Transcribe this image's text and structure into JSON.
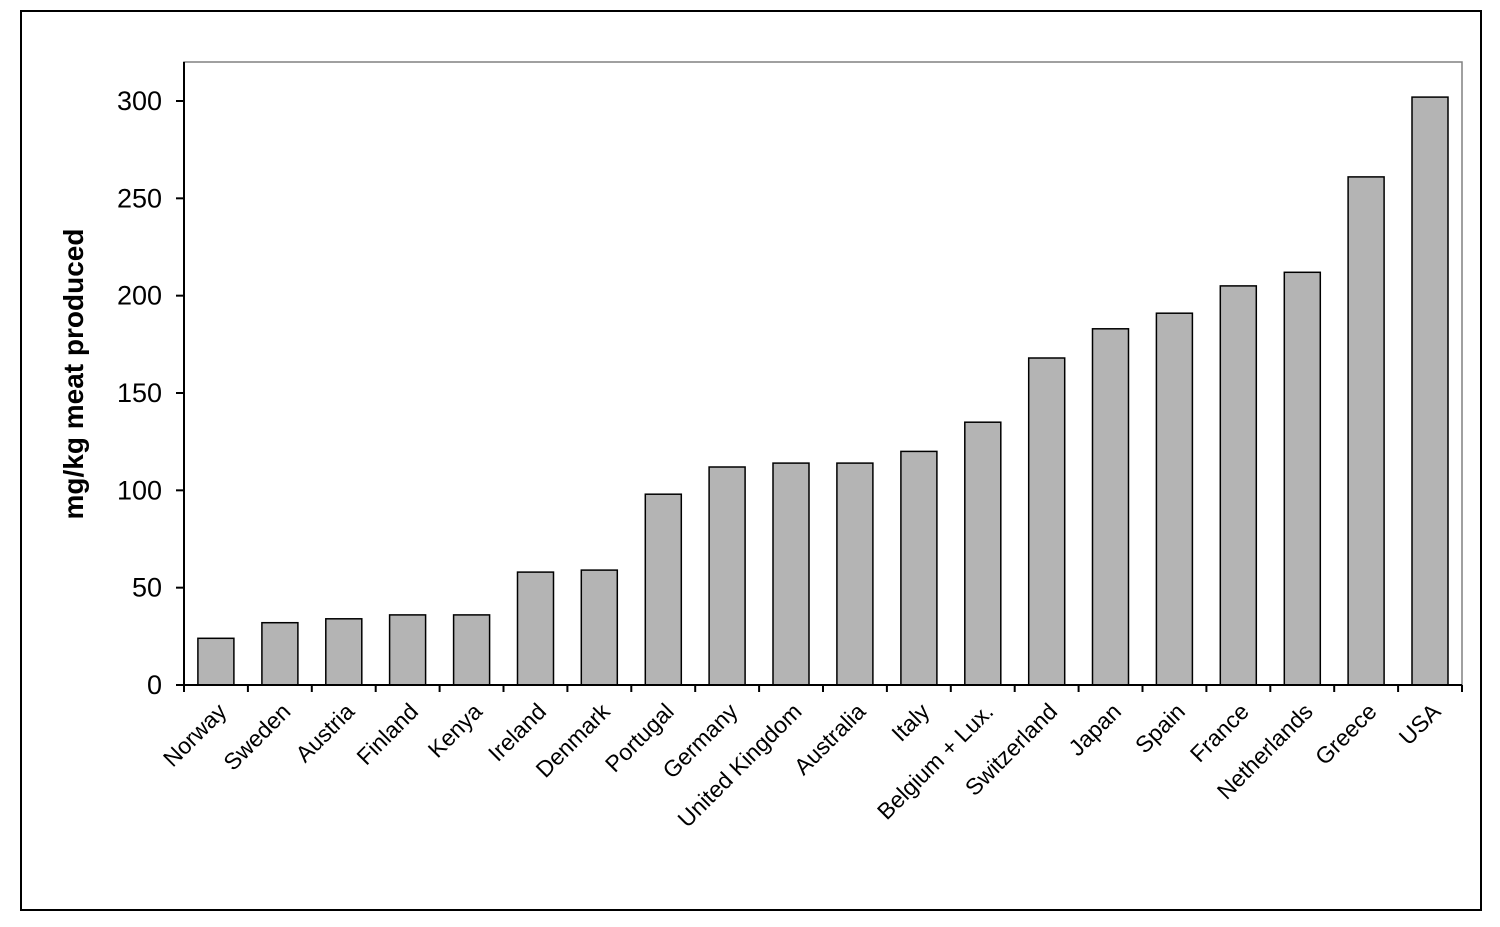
{
  "chart_data": {
    "type": "bar",
    "title": "",
    "xlabel": "",
    "ylabel": "mg/kg meat produced",
    "ylim": [
      0,
      320
    ],
    "yticks": [
      0,
      50,
      100,
      150,
      200,
      250,
      300
    ],
    "grid": false,
    "legend": "none",
    "bar_color": "#b4b4b4",
    "categories": [
      "Norway",
      "Sweden",
      "Austria",
      "Finland",
      "Kenya",
      "Ireland",
      "Denmark",
      "Portugal",
      "Germany",
      "United Kingdom",
      "Australia",
      "Italy",
      "Belgium + Lux.",
      "Switzerland",
      "Japan",
      "Spain",
      "France",
      "Netherlands",
      "Greece",
      "USA"
    ],
    "values": [
      24,
      32,
      34,
      36,
      36,
      58,
      59,
      98,
      112,
      114,
      114,
      120,
      135,
      168,
      183,
      191,
      205,
      212,
      261,
      302
    ]
  }
}
